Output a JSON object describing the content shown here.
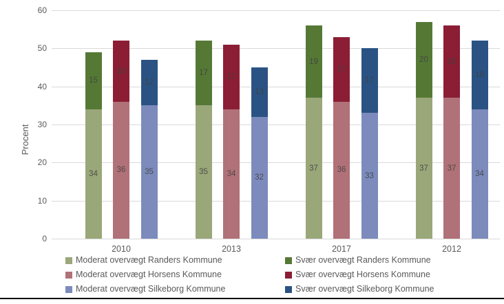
{
  "chart_data": {
    "type": "bar",
    "stacked": true,
    "title": "",
    "xlabel": "",
    "ylabel": "Procent",
    "ylim": [
      0,
      60
    ],
    "yticks": [
      0,
      10,
      20,
      30,
      40,
      50,
      60
    ],
    "grid": "horizontal",
    "legend_position": "bottom-two-columns",
    "categories": [
      "2010",
      "2013",
      "2017",
      "2012"
    ],
    "series": [
      {
        "name": "Moderat overvægt Randers Kommune",
        "stack": "randers",
        "role": "moderat",
        "color": "#9aa779",
        "values": [
          34,
          35,
          37,
          37
        ]
      },
      {
        "name": "Svær overvægt Randers Kommune",
        "stack": "randers",
        "role": "svaer",
        "color": "#557935",
        "values": [
          15,
          17,
          19,
          20
        ]
      },
      {
        "name": "Moderat overvægt Horsens Kommune",
        "stack": "horsens",
        "role": "moderat",
        "color": "#b07178",
        "values": [
          36,
          34,
          36,
          37
        ]
      },
      {
        "name": "Svær overvægt Horsens Kommune",
        "stack": "horsens",
        "role": "svaer",
        "color": "#8b1e34",
        "values": [
          16,
          17,
          17,
          19
        ]
      },
      {
        "name": "Moderat overvægt Silkeborg Kommune",
        "stack": "silkeborg",
        "role": "moderat",
        "color": "#7c8bbc",
        "values": [
          35,
          32,
          33,
          34
        ]
      },
      {
        "name": "Svær overvægt Silkeborg Kommune",
        "stack": "silkeborg",
        "role": "svaer",
        "color": "#2a5384",
        "values": [
          12,
          13,
          17,
          18
        ]
      }
    ],
    "stack_totals": {
      "randers": [
        49,
        52,
        56,
        57
      ],
      "horsens": [
        52,
        51,
        53,
        56
      ],
      "silkeborg": [
        47,
        45,
        50,
        52
      ]
    },
    "legend_columns": [
      [
        0,
        2,
        4
      ],
      [
        1,
        3,
        5
      ]
    ]
  },
  "colors": {
    "gridline": "#d9d9d9",
    "axis_text": "#595959",
    "value_label": "#3f3f3f",
    "bottom_border": "#000000",
    "background": "#ffffff"
  }
}
